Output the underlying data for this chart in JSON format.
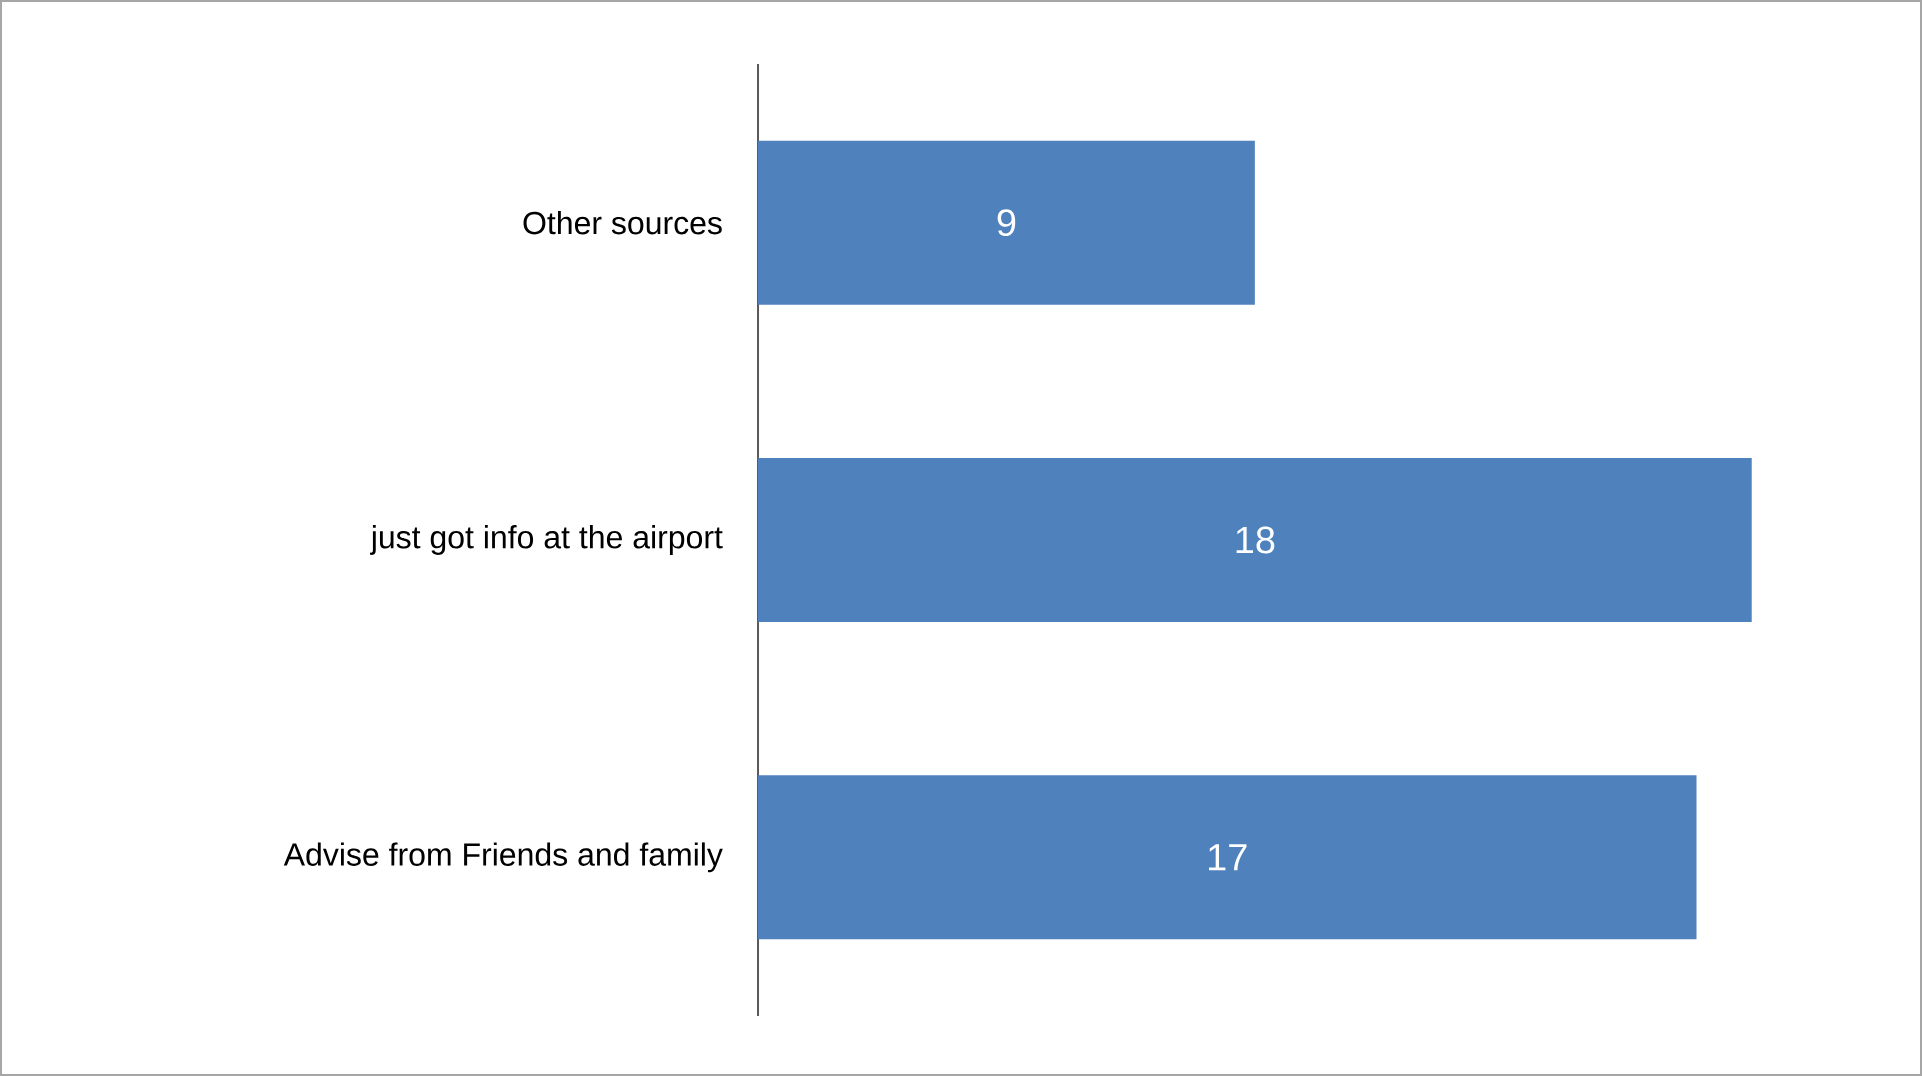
{
  "chart_data": {
    "type": "bar",
    "orientation": "horizontal",
    "categories": [
      "Other sources",
      "just got info at the airport",
      "Advise from Friends and family"
    ],
    "values": [
      9,
      18,
      17
    ],
    "color": "#4f81bd",
    "data_labels": true
  }
}
